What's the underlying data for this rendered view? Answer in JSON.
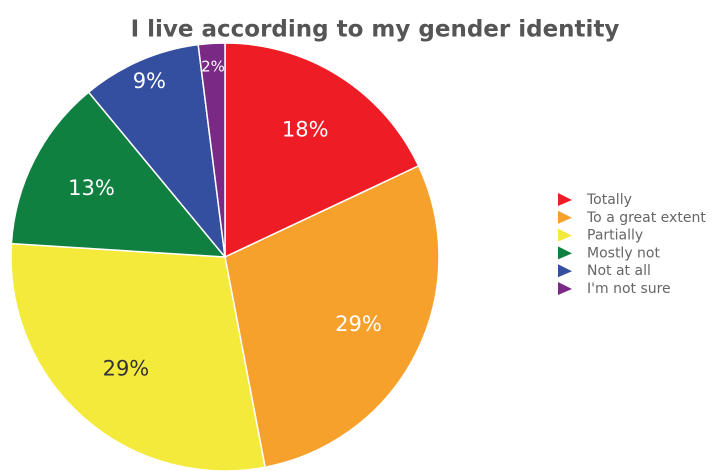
{
  "chart_data": {
    "type": "pie",
    "title": "I live according to my gender identity",
    "categories": [
      "Totally",
      "To a great extent",
      "Partially",
      "Mostly not",
      "Not at all",
      "I'm not sure"
    ],
    "values": [
      18,
      29,
      29,
      13,
      9,
      2
    ],
    "value_labels": [
      "18%",
      "29%",
      "29%",
      "13%",
      "9%",
      "2%"
    ],
    "colors": [
      "#ee1c25",
      "#f7a12d",
      "#f4ea3c",
      "#0f8040",
      "#344ea0",
      "#7a2a85"
    ],
    "legend": "right"
  }
}
